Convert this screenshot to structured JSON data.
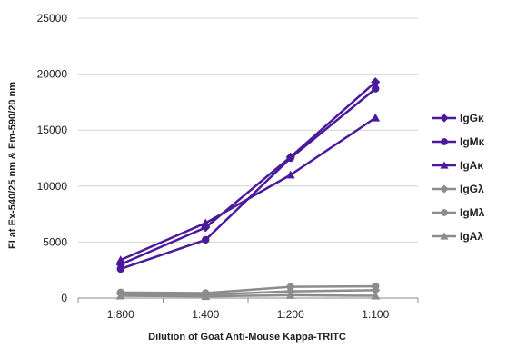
{
  "chart_data": {
    "type": "line",
    "title": "",
    "xlabel": "Dilution of Goat Anti-Mouse Kappa-TRITC",
    "ylabel": "FI at Ex-540/25 nm & Em-590/20 nm",
    "categories": [
      "1:800",
      "1:400",
      "1:200",
      "1:100"
    ],
    "ylim": [
      0,
      25000
    ],
    "yticks": [
      0,
      5000,
      10000,
      15000,
      20000,
      25000
    ],
    "ytick_labels": [
      "0",
      "5000",
      "10000",
      "15000",
      "20000",
      "25000"
    ],
    "grid": true,
    "legend_position": "right",
    "series": [
      {
        "name": "IgGκ",
        "values": [
          3000,
          6300,
          12600,
          19300
        ],
        "color": "#4b1a9c",
        "marker": "diamond"
      },
      {
        "name": "IgMκ",
        "values": [
          2600,
          5200,
          12500,
          18700
        ],
        "color": "#4b1a9c",
        "marker": "circle"
      },
      {
        "name": "IgAκ",
        "values": [
          3400,
          6700,
          11000,
          16100
        ],
        "color": "#4b1a9c",
        "marker": "triangle"
      },
      {
        "name": "IgGλ",
        "values": [
          400,
          300,
          600,
          700
        ],
        "color": "#8c8c8c",
        "marker": "diamond"
      },
      {
        "name": "IgMλ",
        "values": [
          500,
          450,
          1000,
          1050
        ],
        "color": "#8c8c8c",
        "marker": "circle"
      },
      {
        "name": "IgAλ",
        "values": [
          200,
          150,
          250,
          200
        ],
        "color": "#8c8c8c",
        "marker": "triangle"
      }
    ]
  }
}
